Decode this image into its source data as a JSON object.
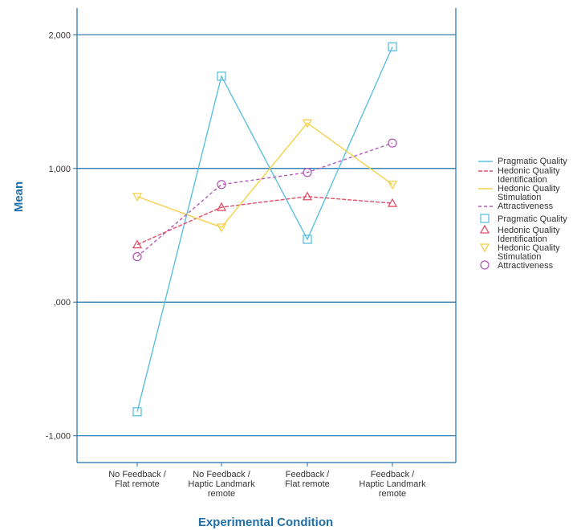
{
  "chart_data": {
    "type": "line",
    "xlabel": "Experimental Condition",
    "ylabel": "Mean",
    "categories": [
      [
        "No Feedback /",
        "Flat remote"
      ],
      [
        "No Feedback /",
        "Haptic Landmark",
        "remote"
      ],
      [
        "Feedback /",
        "Flat remote"
      ],
      [
        "Feedback /",
        "Haptic Landmark",
        "remote"
      ]
    ],
    "ylim": [
      -1.2,
      2.2
    ],
    "yticks": [
      -1,
      0,
      1,
      2
    ],
    "ytick_labels": [
      "-1,000",
      ",000",
      "1,000",
      "2,000"
    ],
    "grid": true,
    "legend_position": "right",
    "series": [
      {
        "name": "Pragmatic Quality",
        "values": [
          -0.82,
          1.69,
          0.47,
          1.91
        ],
        "color": "#5bc0e0",
        "dash": "none",
        "marker": "square"
      },
      {
        "name": "Hedonic Quality Identification",
        "legend_lines": [
          "Hedonic Quality",
          "Identification"
        ],
        "values": [
          0.43,
          0.71,
          0.79,
          0.74
        ],
        "color": "#e0506a",
        "dash": "5,2",
        "marker": "triangle-up"
      },
      {
        "name": "Hedonic Quality Stimulation",
        "legend_lines": [
          "Hedonic Quality",
          "Stimulation"
        ],
        "values": [
          0.79,
          0.56,
          1.34,
          0.88
        ],
        "color": "#f5d14a",
        "dash": "none",
        "marker": "triangle-down"
      },
      {
        "name": "Attractiveness",
        "values": [
          0.34,
          0.88,
          0.97,
          1.19
        ],
        "color": "#b35ab8",
        "dash": "4,3",
        "marker": "circle"
      }
    ]
  }
}
